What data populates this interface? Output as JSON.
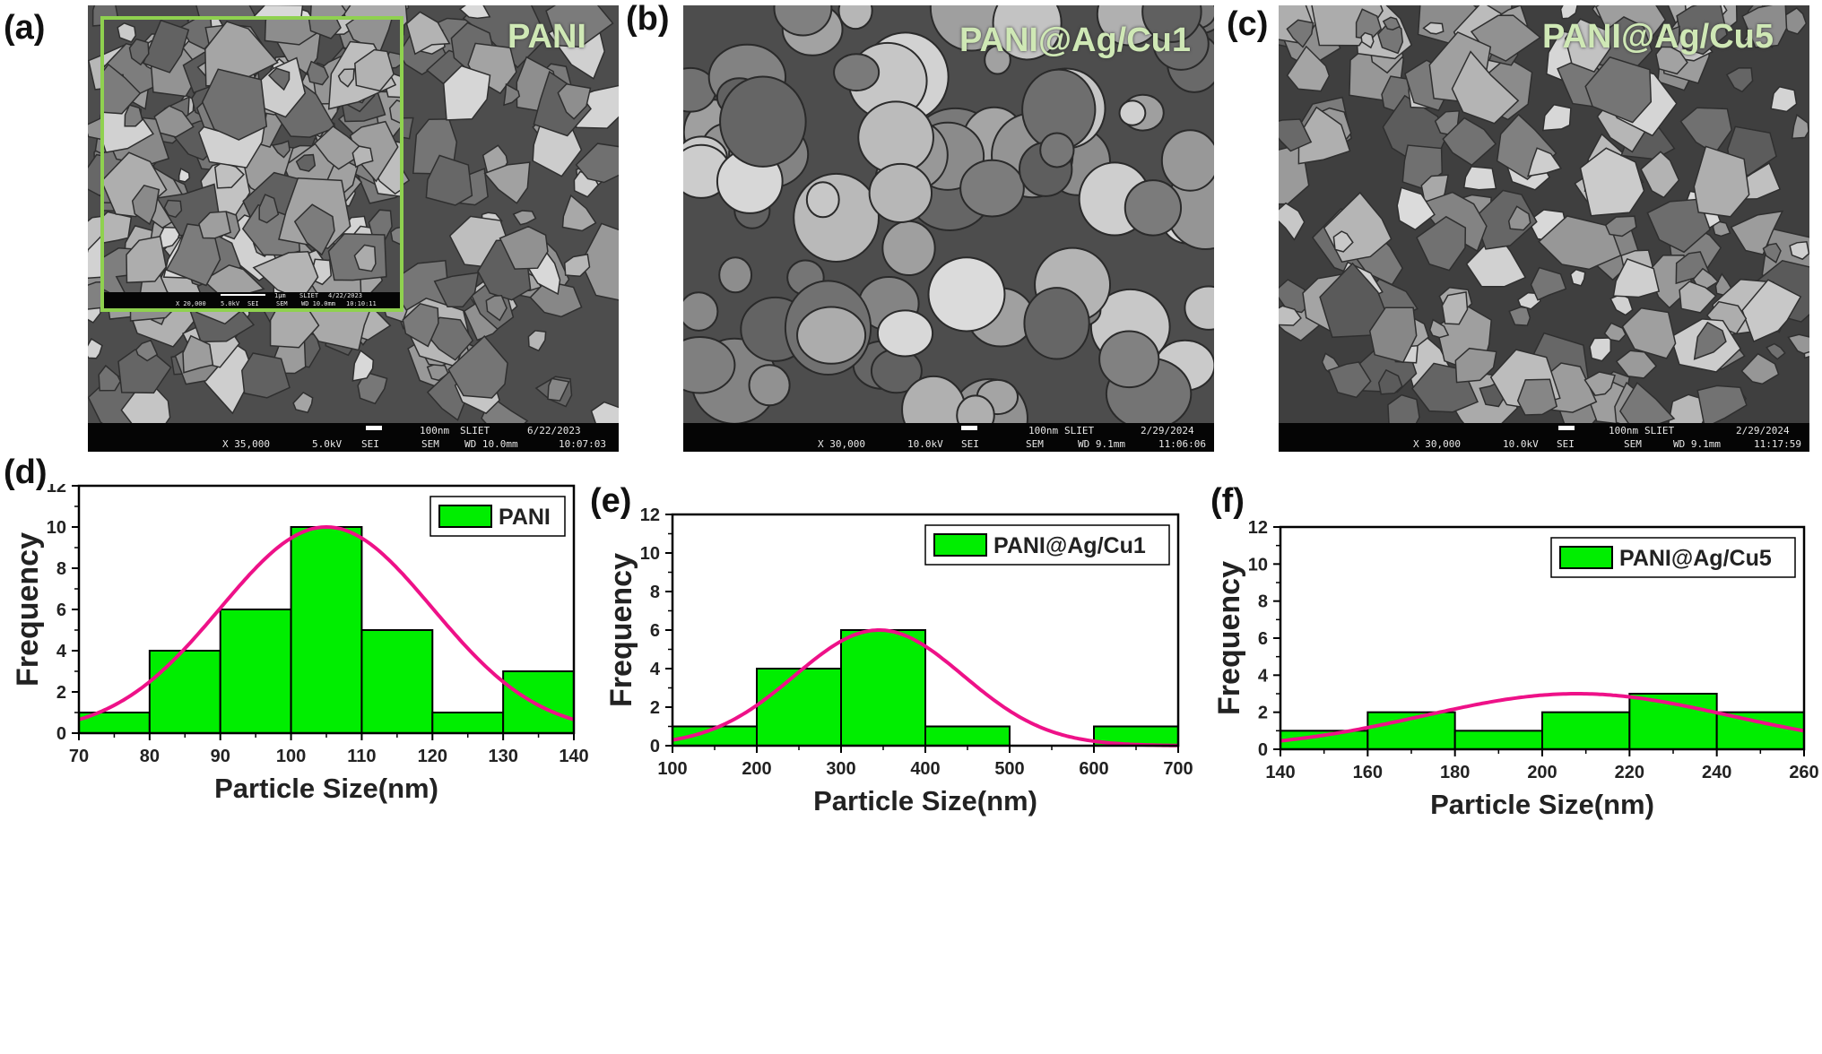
{
  "panels": {
    "a": "(a)",
    "b": "(b)",
    "c": "(c)",
    "d": "(d)",
    "e": "(e)",
    "f": "(f)"
  },
  "sem_images": [
    {
      "sample": "PANI",
      "scale_label": "100nm",
      "institute": "SLIET",
      "date": "6/22/2023",
      "magnification": "X 35,000",
      "voltage": "5.0kV",
      "detector": "SEI",
      "mode": "SEM",
      "wd": "WD 10.0mm",
      "time": "10:07:03",
      "inset": {
        "scale_label": "1μm",
        "institute": "SLIET",
        "date": "4/22/2023",
        "magnification": "X 20,000",
        "voltage": "5.0kV",
        "detector": "SEI",
        "mode": "SEM",
        "wd": "WD 10.0mm",
        "time": "10:10:11"
      }
    },
    {
      "sample": "PANI@Ag/Cu1",
      "scale_label": "100nm",
      "institute": "SLIET",
      "date": "2/29/2024",
      "magnification": "X 30,000",
      "voltage": "10.0kV",
      "detector": "SEI",
      "mode": "SEM",
      "wd": "WD 9.1mm",
      "time": "11:06:06"
    },
    {
      "sample": "PANI@Ag/Cu5",
      "scale_label": "100nm",
      "institute": "SLIET",
      "date": "2/29/2024",
      "magnification": "X 30,000",
      "voltage": "10.0kV",
      "detector": "SEI",
      "mode": "SEM",
      "wd": "WD 9.1mm",
      "time": "11:17:59"
    }
  ],
  "colors": {
    "bar_fill": "#00ee00",
    "fit_line": "#ee1188",
    "inset_border": "#8fd14f"
  },
  "chart_data": [
    {
      "type": "bar",
      "subtype": "histogram",
      "title": "",
      "xlabel": "Particle Size(nm)",
      "ylabel": "Frequency",
      "xlim": [
        70,
        140
      ],
      "ylim": [
        0,
        12
      ],
      "xticks": [
        70,
        80,
        90,
        100,
        110,
        120,
        130,
        140
      ],
      "yticks": [
        0,
        2,
        4,
        6,
        8,
        10,
        12
      ],
      "bins": [
        [
          70,
          80
        ],
        [
          80,
          90
        ],
        [
          90,
          100
        ],
        [
          100,
          110
        ],
        [
          110,
          120
        ],
        [
          120,
          130
        ],
        [
          130,
          140
        ]
      ],
      "values": [
        1,
        4,
        6,
        10,
        5,
        1,
        3
      ],
      "legend": {
        "label": "PANI",
        "position": "top-right"
      },
      "fit": {
        "type": "gaussian",
        "mean": 105,
        "sigma": 15,
        "peak": 10
      }
    },
    {
      "type": "bar",
      "subtype": "histogram",
      "title": "",
      "xlabel": "Particle Size(nm)",
      "ylabel": "Frequency",
      "xlim": [
        100,
        700
      ],
      "ylim": [
        0,
        12
      ],
      "xticks": [
        100,
        200,
        300,
        400,
        500,
        600,
        700
      ],
      "yticks": [
        0,
        2,
        4,
        6,
        8,
        10,
        12
      ],
      "bins": [
        [
          100,
          200
        ],
        [
          200,
          300
        ],
        [
          300,
          400
        ],
        [
          400,
          500
        ],
        [
          500,
          600
        ],
        [
          600,
          700
        ]
      ],
      "values": [
        1,
        4,
        6,
        1,
        0,
        1
      ],
      "legend": {
        "label": "PANI@Ag/Cu1",
        "position": "top-right"
      },
      "fit": {
        "type": "gaussian",
        "mean": 345,
        "sigma": 100,
        "peak": 6
      }
    },
    {
      "type": "bar",
      "subtype": "histogram",
      "title": "",
      "xlabel": "Particle Size(nm)",
      "ylabel": "Frequency",
      "xlim": [
        140,
        260
      ],
      "ylim": [
        0,
        12
      ],
      "xticks": [
        140,
        160,
        180,
        200,
        220,
        240,
        260
      ],
      "yticks": [
        0,
        2,
        4,
        6,
        8,
        10,
        12
      ],
      "bins": [
        [
          140,
          160
        ],
        [
          160,
          180
        ],
        [
          180,
          200
        ],
        [
          200,
          220
        ],
        [
          220,
          240
        ],
        [
          240,
          260
        ]
      ],
      "values": [
        1,
        2,
        1,
        2,
        3,
        2
      ],
      "legend": {
        "label": "PANI@Ag/Cu5",
        "position": "top-right"
      },
      "fit": {
        "type": "gaussian",
        "mean": 208,
        "sigma": 35,
        "peak": 3
      }
    }
  ]
}
